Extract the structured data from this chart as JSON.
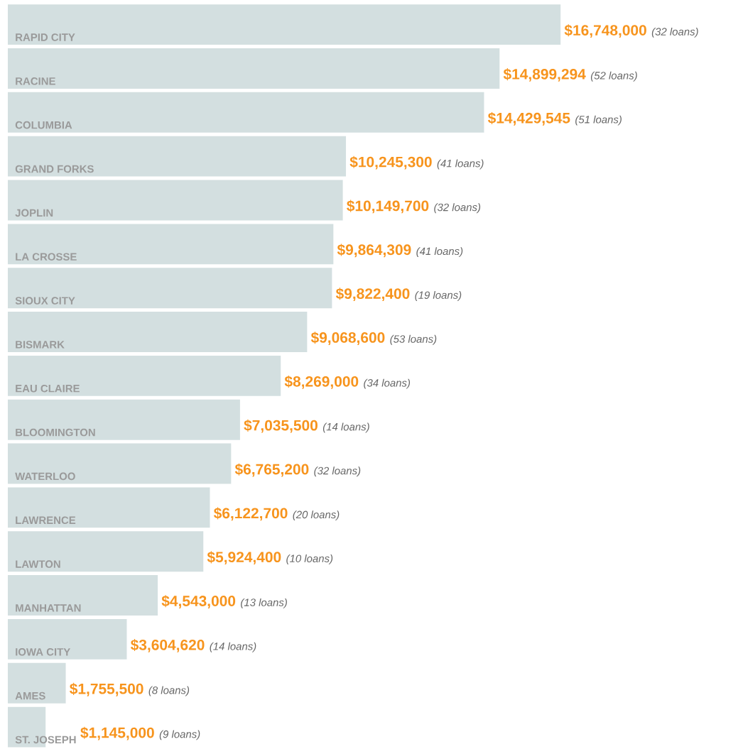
{
  "chart_data": {
    "type": "bar",
    "orientation": "horizontal",
    "color": "#d3dfe0",
    "categories": [
      "RAPID CITY",
      "RACINE",
      "COLUMBIA",
      "GRAND FORKS",
      "JOPLIN",
      "LA CROSSE",
      "SIOUX CITY",
      "BISMARK",
      "EAU CLAIRE",
      "BLOOMINGTON",
      "WATERLOO",
      "LAWRENCE",
      "LAWTON",
      "MANHATTAN",
      "IOWA CITY",
      "AMES",
      "ST. JOSEPH"
    ],
    "values": [
      16748000,
      14899294,
      14429545,
      10245300,
      10149700,
      9864309,
      9822400,
      9068600,
      8269000,
      7035500,
      6765200,
      6122700,
      5924400,
      4543000,
      3604620,
      1755500,
      1145000
    ],
    "value_labels": [
      "$16,748,000",
      "$14,899,294",
      "$14,429,545",
      "$10,245,300",
      "$10,149,700",
      "$9,864,309",
      "$9,822,400",
      "$9,068,600",
      "$8,269,000",
      "$7,035,500",
      "$6,765,200",
      "$6,122,700",
      "$5,924,400",
      "$4,543,000",
      "$3,604,620",
      "$1,755,500",
      "$1,145,000"
    ],
    "annotations": [
      "(32 loans)",
      "(52 loans)",
      "(51 loans)",
      "(41 loans)",
      "(32 loans)",
      "(41 loans)",
      "(19 loans)",
      "(53 loans)",
      "(34 loans)",
      "(14 loans)",
      "(32 loans)",
      "(20 loans)",
      "(10 loans)",
      "(13 loans)",
      "(14 loans)",
      "(8 loans)",
      "(9 loans)"
    ]
  }
}
